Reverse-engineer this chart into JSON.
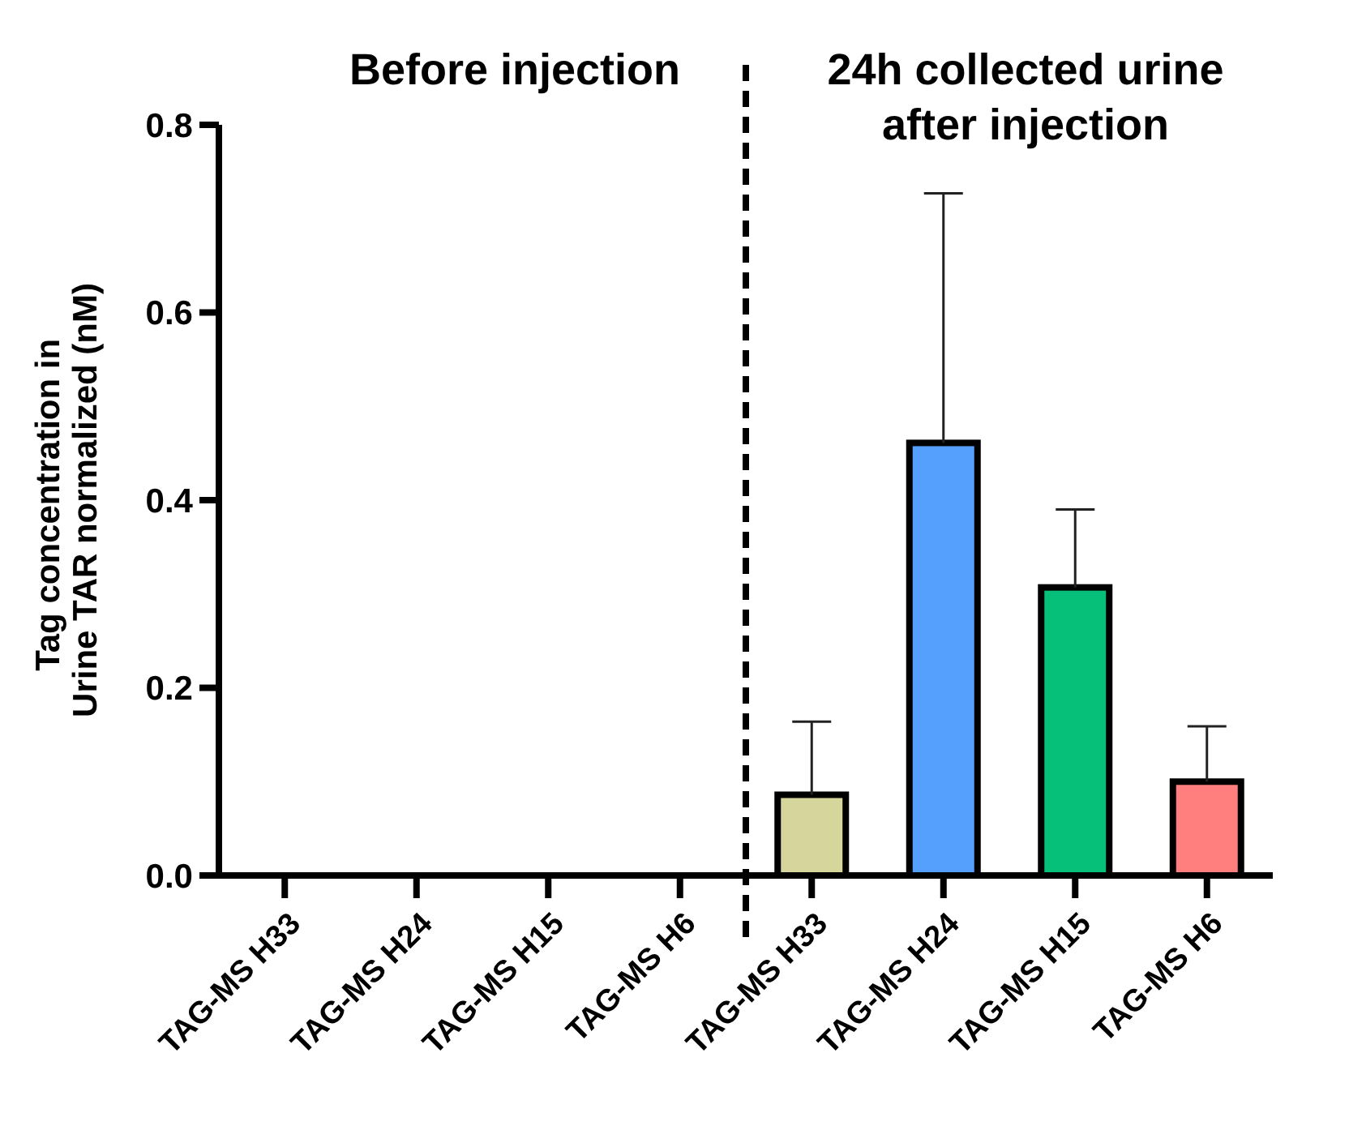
{
  "chart_data": {
    "type": "bar",
    "ylabel": "Tag concentration in  Urine TAR normalized  (nM)",
    "categories": [
      "TAG-MS H33",
      "TAG-MS H24",
      "TAG-MS H15",
      "TAG-MS H6",
      "TAG-MS H33",
      "TAG-MS H24",
      "TAG-MS H15",
      "TAG-MS H6"
    ],
    "values": [
      0,
      0,
      0,
      0,
      0.086,
      0.461,
      0.307,
      0.1
    ],
    "errors": [
      null,
      null,
      null,
      null,
      [
        0.086,
        0.164
      ],
      [
        0.461,
        0.727
      ],
      [
        0.307,
        0.39
      ],
      [
        0.1,
        0.159
      ]
    ],
    "colors": [
      "#d6d69c",
      "#559ffd",
      "#06bf78",
      "#ff7f7f",
      "#d6d69c",
      "#559ffd",
      "#06bf78",
      "#ff7f7f"
    ],
    "ylim": [
      0,
      0.8
    ],
    "yticks": [
      {
        "value": 0,
        "label": "0.0"
      },
      {
        "value": 0.2,
        "label": "0.2"
      },
      {
        "value": 0.4,
        "label": "0.4"
      },
      {
        "value": 0.6,
        "label": "0.6"
      },
      {
        "value": 0.8,
        "label": "0.8"
      }
    ],
    "annotations": [
      "Before injection",
      "24h collected urine after injection"
    ]
  }
}
